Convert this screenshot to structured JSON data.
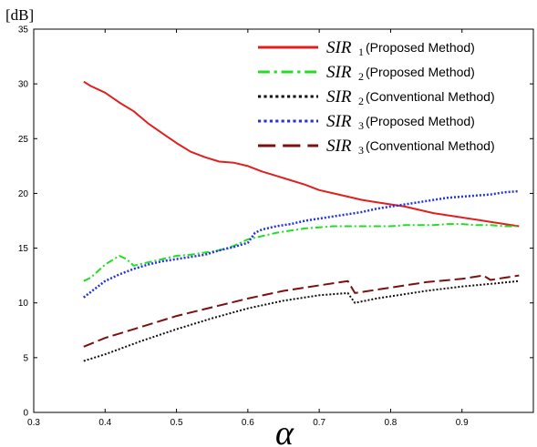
{
  "chart_data": {
    "type": "line",
    "xlabel": "α",
    "ylabel": "[dB]",
    "xlim": [
      0.3,
      1.0
    ],
    "ylim": [
      0,
      35
    ],
    "xticks": [
      "0.3",
      "0.4",
      "0.5",
      "0.6",
      "0.7",
      "0.8",
      "0.9"
    ],
    "yticks": [
      "0",
      "5",
      "10",
      "15",
      "20",
      "25",
      "30",
      "35"
    ],
    "grid": false,
    "legend_position": "top-right",
    "series": [
      {
        "symbol": "SIR",
        "sub": "1",
        "desc": "(Proposed Method)",
        "color": "#e02020",
        "dash": "",
        "width": 2,
        "x": [
          0.37,
          0.38,
          0.4,
          0.42,
          0.44,
          0.46,
          0.48,
          0.5,
          0.52,
          0.54,
          0.56,
          0.58,
          0.6,
          0.62,
          0.64,
          0.66,
          0.68,
          0.7,
          0.72,
          0.74,
          0.76,
          0.78,
          0.8,
          0.82,
          0.84,
          0.86,
          0.88,
          0.9,
          0.92,
          0.94,
          0.96,
          0.98
        ],
        "y": [
          30.2,
          29.8,
          29.2,
          28.3,
          27.5,
          26.4,
          25.5,
          24.6,
          23.8,
          23.3,
          22.9,
          22.8,
          22.5,
          22.0,
          21.6,
          21.2,
          20.8,
          20.3,
          20.0,
          19.7,
          19.4,
          19.2,
          19.0,
          18.8,
          18.5,
          18.2,
          18.0,
          17.8,
          17.6,
          17.4,
          17.2,
          17.0
        ]
      },
      {
        "symbol": "SIR",
        "sub": "2",
        "desc": "(Proposed Method)",
        "color": "#22dd22",
        "dash": "8,3,2,3",
        "width": 2,
        "x": [
          0.37,
          0.38,
          0.4,
          0.42,
          0.43,
          0.44,
          0.46,
          0.48,
          0.5,
          0.52,
          0.54,
          0.56,
          0.58,
          0.6,
          0.62,
          0.64,
          0.66,
          0.68,
          0.7,
          0.72,
          0.74,
          0.76,
          0.78,
          0.8,
          0.82,
          0.84,
          0.86,
          0.88,
          0.9,
          0.92,
          0.94,
          0.96,
          0.98
        ],
        "y": [
          12.0,
          12.3,
          13.5,
          14.3,
          14.0,
          13.4,
          13.7,
          14.0,
          14.3,
          14.4,
          14.6,
          14.8,
          15.2,
          15.8,
          16.1,
          16.4,
          16.6,
          16.8,
          16.9,
          17.0,
          17.0,
          17.0,
          17.0,
          17.0,
          17.1,
          17.1,
          17.1,
          17.2,
          17.2,
          17.1,
          17.1,
          17.0,
          17.0
        ]
      },
      {
        "symbol": "SIR",
        "sub": "2",
        "desc": "(Conventional Method)",
        "color": "#111111",
        "dash": "2,2",
        "width": 2,
        "x": [
          0.37,
          0.4,
          0.45,
          0.5,
          0.55,
          0.6,
          0.65,
          0.7,
          0.74,
          0.75,
          0.78,
          0.8,
          0.85,
          0.9,
          0.95,
          0.98
        ],
        "y": [
          4.7,
          5.3,
          6.5,
          7.6,
          8.6,
          9.5,
          10.2,
          10.7,
          10.9,
          10.0,
          10.4,
          10.6,
          11.1,
          11.5,
          11.8,
          12.0
        ]
      },
      {
        "symbol": "SIR",
        "sub": "3",
        "desc": "(Proposed Method)",
        "color": "#2233dd",
        "dash": "2,2",
        "width": 2.5,
        "x": [
          0.37,
          0.38,
          0.4,
          0.42,
          0.44,
          0.46,
          0.48,
          0.5,
          0.52,
          0.54,
          0.56,
          0.58,
          0.6,
          0.61,
          0.62,
          0.64,
          0.66,
          0.68,
          0.7,
          0.72,
          0.74,
          0.76,
          0.78,
          0.8,
          0.82,
          0.84,
          0.86,
          0.88,
          0.9,
          0.92,
          0.94,
          0.96,
          0.98
        ],
        "y": [
          10.5,
          11.0,
          12.0,
          12.6,
          13.1,
          13.5,
          13.8,
          14.0,
          14.2,
          14.4,
          14.8,
          15.1,
          15.5,
          16.4,
          16.7,
          17.0,
          17.2,
          17.5,
          17.7,
          17.9,
          18.1,
          18.3,
          18.6,
          18.8,
          19.0,
          19.2,
          19.4,
          19.6,
          19.7,
          19.8,
          19.9,
          20.1,
          20.2
        ]
      },
      {
        "symbol": "SIR",
        "sub": "3",
        "desc": "(Conventional Method)",
        "color": "#7a1010",
        "dash": "12,5",
        "width": 2,
        "x": [
          0.37,
          0.4,
          0.45,
          0.5,
          0.55,
          0.6,
          0.65,
          0.7,
          0.74,
          0.75,
          0.78,
          0.8,
          0.85,
          0.9,
          0.93,
          0.94,
          0.96,
          0.98
        ],
        "y": [
          6.0,
          6.8,
          7.8,
          8.8,
          9.6,
          10.4,
          11.1,
          11.6,
          12.0,
          10.9,
          11.2,
          11.4,
          11.9,
          12.2,
          12.5,
          12.1,
          12.3,
          12.5
        ]
      }
    ]
  }
}
